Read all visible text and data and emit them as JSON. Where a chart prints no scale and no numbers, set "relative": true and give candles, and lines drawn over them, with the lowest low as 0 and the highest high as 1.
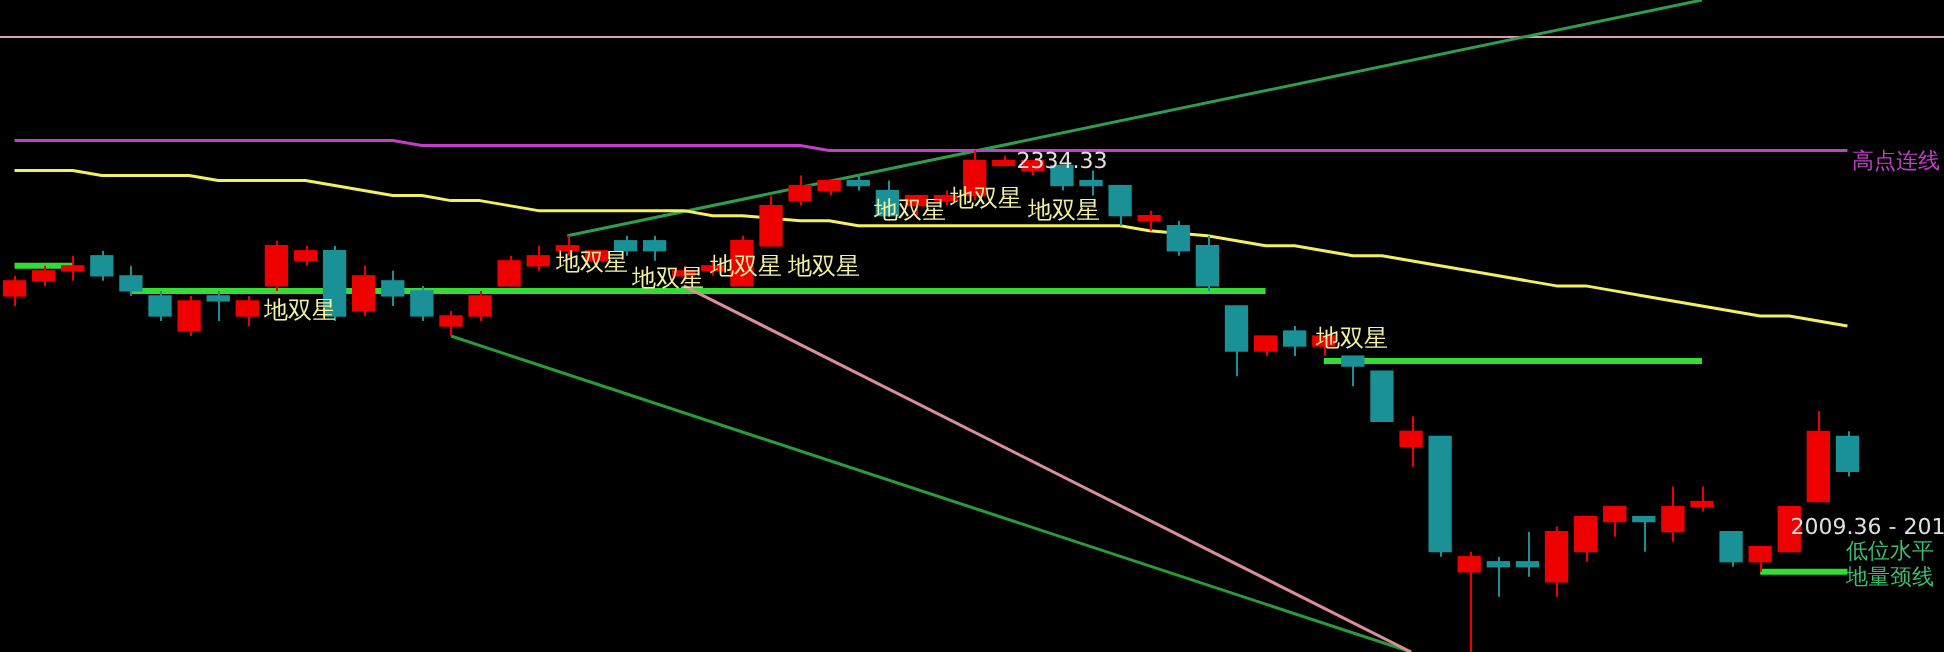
{
  "chart_data": {
    "type": "candlestick",
    "relative": true,
    "legend": false,
    "tick_labels": false,
    "marker": "none",
    "categories": [
      null,
      null,
      null,
      null,
      null,
      null,
      null,
      null,
      null,
      null,
      null,
      null,
      null,
      null,
      null,
      null,
      null,
      null,
      null,
      null,
      null,
      null,
      null,
      null,
      null,
      null,
      null,
      null,
      null,
      null,
      null,
      null,
      null,
      null,
      null,
      null,
      null,
      null,
      null,
      null,
      null,
      null,
      null,
      null,
      null,
      null,
      null,
      null,
      null,
      null,
      null,
      null,
      null,
      null,
      null,
      null,
      null,
      null,
      null,
      null,
      null,
      null,
      null,
      null
    ],
    "ohlc": [
      [
        0.71,
        0.75,
        0.69,
        0.74
      ],
      [
        0.74,
        0.77,
        0.73,
        0.76
      ],
      [
        0.76,
        0.79,
        0.74,
        0.77
      ],
      [
        0.79,
        0.8,
        0.74,
        0.75
      ],
      [
        0.75,
        0.77,
        0.71,
        0.72
      ],
      [
        0.71,
        0.72,
        0.66,
        0.67
      ],
      [
        0.64,
        0.71,
        0.63,
        0.7
      ],
      [
        0.71,
        0.72,
        0.66,
        0.7
      ],
      [
        0.67,
        0.71,
        0.65,
        0.7
      ],
      [
        0.73,
        0.82,
        0.72,
        0.81
      ],
      [
        0.78,
        0.81,
        0.77,
        0.8
      ],
      [
        0.8,
        0.81,
        0.66,
        0.67
      ],
      [
        0.68,
        0.77,
        0.67,
        0.75
      ],
      [
        0.74,
        0.76,
        0.69,
        0.71
      ],
      [
        0.72,
        0.73,
        0.66,
        0.67
      ],
      [
        0.65,
        0.68,
        0.63,
        0.67
      ],
      [
        0.67,
        0.72,
        0.66,
        0.71
      ],
      [
        0.73,
        0.79,
        0.73,
        0.78
      ],
      [
        0.77,
        0.81,
        0.76,
        0.79
      ],
      [
        0.8,
        0.83,
        0.79,
        0.81
      ],
      [
        0.78,
        0.8,
        0.77,
        0.8
      ],
      [
        0.82,
        0.83,
        0.79,
        0.8
      ],
      [
        0.82,
        0.83,
        0.78,
        0.8
      ],
      [
        0.75,
        0.77,
        0.74,
        0.76
      ],
      [
        0.76,
        0.78,
        0.75,
        0.77
      ],
      [
        0.73,
        0.83,
        0.73,
        0.82
      ],
      [
        0.81,
        0.91,
        0.81,
        0.89
      ],
      [
        0.9,
        0.95,
        0.89,
        0.93
      ],
      [
        0.92,
        0.94,
        0.91,
        0.94
      ],
      [
        0.94,
        0.95,
        0.92,
        0.93
      ],
      [
        0.92,
        0.94,
        0.87,
        0.87
      ],
      [
        0.89,
        0.91,
        0.87,
        0.91
      ],
      [
        0.9,
        0.92,
        0.89,
        0.91
      ],
      [
        0.91,
        1,
        0.9,
        0.98
      ],
      [
        0.97,
        0.99,
        0.97,
        0.98
      ],
      [
        0.96,
        0.98,
        0.95,
        0.98
      ],
      [
        0.97,
        0.97,
        0.92,
        0.93
      ],
      [
        0.94,
        0.96,
        0.91,
        0.93
      ],
      [
        0.93,
        0.93,
        0.85,
        0.87
      ],
      [
        0.86,
        0.88,
        0.84,
        0.87
      ],
      [
        0.85,
        0.86,
        0.79,
        0.8
      ],
      [
        0.81,
        0.83,
        0.72,
        0.73
      ],
      [
        0.69,
        0.69,
        0.55,
        0.6
      ],
      [
        0.6,
        0.63,
        0.59,
        0.63
      ],
      [
        0.64,
        0.65,
        0.59,
        0.61
      ],
      [
        0.61,
        0.63,
        0.59,
        0.63
      ],
      [
        0.59,
        0.59,
        0.53,
        0.57
      ],
      [
        0.56,
        0.56,
        0.46,
        0.46
      ],
      [
        0.41,
        0.47,
        0.37,
        0.44
      ],
      [
        0.43,
        0.43,
        0.19,
        0.2
      ],
      [
        0.16,
        0.2,
        0,
        0.19
      ],
      [
        0.18,
        0.19,
        0.11,
        0.17
      ],
      [
        0.18,
        0.24,
        0.15,
        0.17
      ],
      [
        0.14,
        0.25,
        0.11,
        0.24
      ],
      [
        0.2,
        0.27,
        0.18,
        0.27
      ],
      [
        0.26,
        0.29,
        0.23,
        0.29
      ],
      [
        0.27,
        0.27,
        0.2,
        0.26
      ],
      [
        0.24,
        0.33,
        0.22,
        0.29
      ],
      [
        0.29,
        0.33,
        0.28,
        0.3
      ],
      [
        0.24,
        0.24,
        0.17,
        0.18
      ],
      [
        0.18,
        0.21,
        0.16,
        0.21
      ],
      [
        0.2,
        0.29,
        0.2,
        0.29
      ],
      [
        0.3,
        0.48,
        0.3,
        0.44
      ],
      [
        0.43,
        0.44,
        0.35,
        0.36
      ]
    ],
    "colors": [
      "#ee0000",
      "#ee0000",
      "#ee0000",
      "#1a9097",
      "#1a9097",
      "#1a9097",
      "#ee0000",
      "#1a9097",
      "#ee0000",
      "#ee0000",
      "#ee0000",
      "#1a9097",
      "#ee0000",
      "#1a9097",
      "#1a9097",
      "#ee0000",
      "#ee0000",
      "#ee0000",
      "#ee0000",
      "#ee0000",
      "#ee0000",
      "#1a9097",
      "#1a9097",
      "#ee0000",
      "#ee0000",
      "#ee0000",
      "#ee0000",
      "#ee0000",
      "#ee0000",
      "#1a9097",
      "#1a9097",
      "#ee0000",
      "#ee0000",
      "#ee0000",
      "#ee0000",
      "#ee0000",
      "#1a9097",
      "#1a9097",
      "#1a9097",
      "#ee0000",
      "#1a9097",
      "#1a9097",
      "#1a9097",
      "#ee0000",
      "#1a9097",
      "#ee0000",
      "#1a9097",
      "#1a9097",
      "#ee0000",
      "#1a9097",
      "#ee0000",
      "#1a9097",
      "#1a9097",
      "#ee0000",
      "#ee0000",
      "#ee0000",
      "#1a9097",
      "#ee0000",
      "#ee0000",
      "#1a9097",
      "#ee0000",
      "#ee0000",
      "#ee0000",
      "#1a9097"
    ],
    "series": [
      {
        "type": "line",
        "name": "高点连线",
        "color": "#c040c8",
        "values": [
          1.02,
          1.02,
          1.02,
          1.02,
          1.02,
          1.02,
          1.02,
          1.02,
          1.02,
          1.02,
          1.02,
          1.02,
          1.02,
          1.02,
          1.01,
          1.01,
          1.01,
          1.01,
          1.01,
          1.01,
          1.01,
          1.01,
          1.01,
          1.01,
          1.01,
          1.01,
          1.01,
          1.01,
          1.0,
          1.0,
          1.0,
          1.0,
          1.0,
          1.0,
          1.0,
          1.0,
          1.0,
          1.0,
          1.0,
          1.0,
          1.0,
          1.0,
          1.0,
          1.0,
          1.0,
          1.0,
          1.0,
          1.0,
          1.0,
          1.0,
          1.0,
          1.0,
          1.0,
          1.0,
          1.0,
          1.0,
          1.0,
          1.0,
          1.0,
          1.0,
          1.0,
          1.0,
          1.0,
          1.0
        ]
      },
      {
        "type": "line",
        "color": "#f0f060",
        "values": [
          0.96,
          0.96,
          0.96,
          0.95,
          0.95,
          0.95,
          0.95,
          0.94,
          0.94,
          0.94,
          0.94,
          0.93,
          0.92,
          0.91,
          0.91,
          0.9,
          0.9,
          0.89,
          0.88,
          0.88,
          0.88,
          0.88,
          0.88,
          0.88,
          0.87,
          0.87,
          null,
          0.86,
          0.86,
          0.85,
          0.85,
          0.85,
          0.85,
          0.85,
          0.85,
          0.85,
          0.85,
          0.85,
          0.85,
          0.84,
          null,
          0.83,
          0.82,
          0.81,
          0.81,
          0.8,
          0.79,
          0.79,
          0.78,
          0.77,
          0.76,
          0.75,
          0.74,
          0.73,
          0.73,
          0.72,
          0.71,
          0.7,
          0.69,
          0.68,
          0.67,
          0.67,
          0.66,
          0.65
        ]
      },
      {
        "type": "line",
        "color": "#2e9e4e",
        "values": [
          null,
          null,
          null,
          null,
          null,
          null,
          null,
          null,
          null,
          null,
          null,
          null,
          null,
          null,
          null,
          null,
          null,
          null,
          null,
          0.83,
          null,
          null,
          null,
          null,
          null,
          null,
          null,
          null,
          null,
          null,
          null,
          null,
          null,
          null,
          null,
          null,
          null,
          null,
          null,
          null,
          null,
          null,
          null,
          null,
          null,
          null,
          null,
          null,
          null,
          null,
          null,
          null,
          null,
          null,
          null,
          null,
          null,
          null,
          1.3,
          null,
          null,
          null,
          null,
          null
        ]
      },
      {
        "type": "line",
        "color": "#d89098",
        "values": [
          null,
          null,
          null,
          null,
          null,
          null,
          null,
          null,
          null,
          null,
          null,
          null,
          null,
          null,
          null,
          null,
          null,
          null,
          null,
          null,
          null,
          null,
          null,
          0.73,
          null,
          null,
          null,
          null,
          null,
          null,
          null,
          null,
          null,
          null,
          null,
          null,
          null,
          null,
          null,
          null,
          null,
          null,
          null,
          null,
          null,
          null,
          null,
          null,
          0,
          null,
          null,
          null,
          null,
          null,
          null,
          null,
          null,
          null,
          null,
          null,
          null,
          null,
          null,
          null
        ]
      },
      {
        "type": "line",
        "color": "#2a9a3a",
        "values": [
          null,
          null,
          null,
          null,
          null,
          null,
          null,
          null,
          null,
          null,
          null,
          null,
          null,
          null,
          null,
          0.63,
          null,
          null,
          null,
          null,
          null,
          null,
          null,
          null,
          null,
          null,
          null,
          null,
          null,
          null,
          null,
          null,
          null,
          null,
          null,
          null,
          null,
          null,
          null,
          null,
          null,
          null,
          null,
          null,
          null,
          null,
          null,
          null,
          0,
          null,
          null,
          null,
          null,
          null,
          null,
          null,
          null,
          null,
          null,
          null,
          null,
          null,
          null,
          null
        ]
      },
      {
        "type": "line",
        "color": "#33dd33",
        "values": [
          0.77,
          0.77,
          0.77,
          null,
          null,
          null,
          null,
          null,
          null,
          null,
          null,
          null,
          null,
          null,
          null,
          null,
          null,
          null,
          null,
          null,
          null,
          null,
          null,
          null,
          null,
          null,
          null,
          null,
          null,
          null,
          null,
          null,
          null,
          null,
          null,
          null,
          null,
          null,
          null,
          null,
          null,
          null,
          null,
          null,
          null,
          null,
          null,
          null,
          null,
          null,
          null,
          null,
          null,
          null,
          null,
          null,
          null,
          null,
          null,
          null,
          null,
          null,
          null,
          null
        ]
      },
      {
        "type": "line",
        "color": "#33dd33",
        "values": [
          null,
          null,
          null,
          null,
          0.72,
          0.72,
          0.72,
          0.72,
          0.72,
          0.72,
          0.72,
          null,
          null,
          0.72,
          0.72,
          0.72,
          0.72,
          0.72,
          0.72,
          0.72,
          0.72,
          0.72,
          0.72,
          0.72,
          0.72,
          0.72,
          0.72,
          0.72,
          0.72,
          0.72,
          0.72,
          0.72,
          0.72,
          0.72,
          0.72,
          0.72,
          0.72,
          0.72,
          0.72,
          0.72,
          0.72,
          0.72,
          0.72,
          0.72,
          null,
          null,
          null,
          null,
          null,
          null,
          null,
          null,
          null,
          null,
          null,
          null,
          null,
          null,
          null,
          null,
          null,
          null,
          null,
          null
        ]
      },
      {
        "type": "line",
        "color": "#33dd33",
        "values": [
          null,
          null,
          null,
          null,
          null,
          null,
          null,
          null,
          null,
          null,
          null,
          null,
          null,
          null,
          null,
          null,
          null,
          null,
          null,
          null,
          null,
          null,
          null,
          null,
          null,
          null,
          null,
          null,
          null,
          null,
          null,
          null,
          null,
          null,
          null,
          null,
          null,
          null,
          null,
          null,
          null,
          null,
          null,
          null,
          null,
          0.58,
          0.58,
          0.58,
          0.58,
          0.58,
          0.58,
          0.58,
          0.58,
          0.58,
          0.58,
          0.58,
          0.58,
          0.58,
          0.58,
          null,
          null,
          null,
          null,
          null
        ]
      },
      {
        "type": "line",
        "color": "#33dd33",
        "values": [
          null,
          null,
          null,
          null,
          null,
          null,
          null,
          null,
          null,
          null,
          null,
          null,
          null,
          null,
          null,
          null,
          null,
          null,
          null,
          null,
          null,
          null,
          null,
          null,
          null,
          null,
          null,
          null,
          null,
          null,
          null,
          null,
          null,
          null,
          null,
          null,
          null,
          null,
          null,
          null,
          null,
          null,
          null,
          null,
          null,
          null,
          null,
          null,
          null,
          null,
          null,
          null,
          null,
          null,
          null,
          null,
          null,
          null,
          null,
          null,
          0.16,
          0.16,
          0.16,
          0.16
        ]
      }
    ],
    "ref_lines": [
      {
        "axis": "y",
        "value": 1.23,
        "color": "#d8a0b0"
      }
    ],
    "annotations": [
      "地双星",
      "地双星",
      "地双星",
      "地双星",
      "地双星",
      "地双星",
      "地双星",
      "地双星",
      "地双星",
      "2334.33",
      "2009.36 - 201",
      "低位水平",
      "地量颈线"
    ]
  }
}
